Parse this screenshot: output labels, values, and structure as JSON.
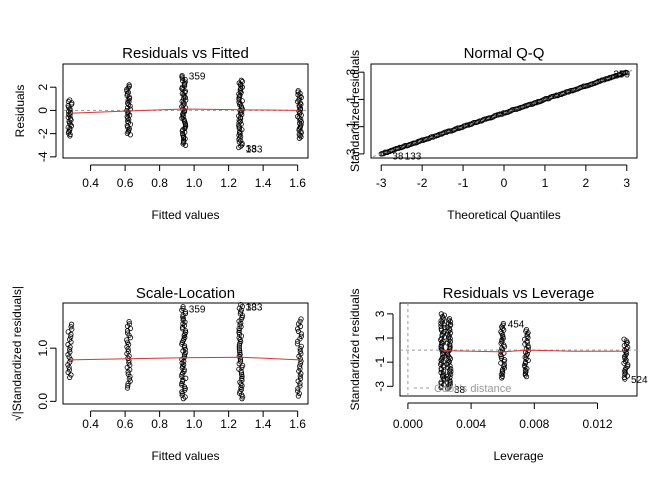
{
  "chart_data": [
    {
      "id": "rvf",
      "type": "scatter",
      "title": "Residuals vs Fitted",
      "xlabel": "Fitted values",
      "ylabel": "Residuals",
      "xlim": [
        0.24,
        1.66
      ],
      "ylim": [
        -4.1,
        4.0
      ],
      "xticks": [
        0.4,
        0.6,
        0.8,
        1.0,
        1.2,
        1.4,
        1.6
      ],
      "xtick_labels": [
        "0.4",
        "0.6",
        "0.8",
        "1.0",
        "1.2",
        "1.4",
        "1.6"
      ],
      "yticks": [
        -4,
        -2,
        0,
        2
      ],
      "ytick_labels": [
        "-4",
        "-2",
        "0",
        "2"
      ],
      "groups": [
        {
          "x": 0.28,
          "min": -2.2,
          "max": 0.9,
          "n": 26
        },
        {
          "x": 0.62,
          "min": -2.1,
          "max": 2.2,
          "n": 34
        },
        {
          "x": 0.94,
          "min": -3.0,
          "max": 3.0,
          "n": 55
        },
        {
          "x": 1.27,
          "min": -3.2,
          "max": 2.6,
          "n": 50
        },
        {
          "x": 1.61,
          "min": -2.4,
          "max": 1.7,
          "n": 36
        }
      ],
      "smooth": [
        [
          0.28,
          -0.25
        ],
        [
          0.62,
          -0.05
        ],
        [
          0.94,
          0.12
        ],
        [
          1.27,
          0.05
        ],
        [
          1.61,
          0.0
        ]
      ],
      "reference_y": 0,
      "annotations": [
        {
          "text": "359",
          "x": 0.94,
          "y": 3.0
        },
        {
          "text": "133",
          "x": 1.27,
          "y": -3.3
        },
        {
          "text": "38",
          "x": 1.27,
          "y": -3.25
        }
      ]
    },
    {
      "id": "qq",
      "type": "scatter",
      "title": "Normal Q-Q",
      "xlabel": "Theoretical Quantiles",
      "ylabel": "Standardized residuals",
      "xlim": [
        -3.25,
        3.25
      ],
      "ylim": [
        -3.3,
        3.6
      ],
      "xticks": [
        -3,
        -2,
        -1,
        0,
        1,
        2,
        3
      ],
      "xtick_labels": [
        "-3",
        "-2",
        "-1",
        "0",
        "1",
        "2",
        "3"
      ],
      "yticks": [
        -3,
        -1,
        1,
        3
      ],
      "ytick_labels": [
        "-3",
        "-1",
        "1",
        "3"
      ],
      "line": {
        "intercept": 0,
        "slope": 1
      },
      "n_points": 200,
      "annotations": [
        {
          "text": "359",
          "x": 2.55,
          "y": 2.9
        },
        {
          "text": "133",
          "x": -2.55,
          "y": -3.1
        },
        {
          "text": "38",
          "x": -2.85,
          "y": -3.1
        }
      ]
    },
    {
      "id": "sl",
      "type": "scatter",
      "title": "Scale-Location",
      "xlabel": "Fitted values",
      "ylabel": "√|Standardized residuals|",
      "xlim": [
        0.24,
        1.66
      ],
      "ylim": [
        -0.05,
        1.85
      ],
      "xticks": [
        0.4,
        0.6,
        0.8,
        1.0,
        1.2,
        1.4,
        1.6
      ],
      "xtick_labels": [
        "0.4",
        "0.6",
        "0.8",
        "1.0",
        "1.2",
        "1.4",
        "1.6"
      ],
      "yticks": [
        0.0,
        1.0
      ],
      "ytick_labels": [
        "0.0",
        "1.0"
      ],
      "groups": [
        {
          "x": 0.28,
          "min": 0.45,
          "max": 1.45,
          "n": 22
        },
        {
          "x": 0.62,
          "min": 0.25,
          "max": 1.5,
          "n": 30
        },
        {
          "x": 0.94,
          "min": 0.05,
          "max": 1.78,
          "n": 55
        },
        {
          "x": 1.27,
          "min": 0.05,
          "max": 1.82,
          "n": 52
        },
        {
          "x": 1.61,
          "min": 0.1,
          "max": 1.55,
          "n": 32
        }
      ],
      "smooth": [
        [
          0.28,
          0.78
        ],
        [
          0.62,
          0.8
        ],
        [
          0.94,
          0.82
        ],
        [
          1.27,
          0.83
        ],
        [
          1.61,
          0.78
        ]
      ],
      "annotations": [
        {
          "text": "359",
          "x": 0.94,
          "y": 1.75
        },
        {
          "text": "133",
          "x": 1.27,
          "y": 1.78
        },
        {
          "text": "38",
          "x": 1.27,
          "y": 1.78
        }
      ]
    },
    {
      "id": "rvl",
      "type": "scatter",
      "title": "Residuals vs Leverage",
      "xlabel": "Leverage",
      "ylabel": "Standardized residuals",
      "xlim": [
        -0.0005,
        0.0145
      ],
      "ylim": [
        -3.8,
        3.9
      ],
      "xticks": [
        0.0,
        0.004,
        0.008,
        0.012
      ],
      "xtick_labels": [
        "0.000",
        "0.004",
        "0.008",
        "0.012"
      ],
      "yticks": [
        -3,
        -1,
        1,
        3
      ],
      "ytick_labels": [
        "-3",
        "-1",
        "1",
        "3"
      ],
      "groups": [
        {
          "x": 0.0022,
          "min": -3.1,
          "max": 3.0,
          "n": 55
        },
        {
          "x": 0.0026,
          "min": -3.2,
          "max": 2.6,
          "n": 50
        },
        {
          "x": 0.006,
          "min": -2.3,
          "max": 2.2,
          "n": 34
        },
        {
          "x": 0.0075,
          "min": -2.2,
          "max": 1.7,
          "n": 30
        },
        {
          "x": 0.0138,
          "min": -2.4,
          "max": 0.9,
          "n": 26
        }
      ],
      "smooth": [
        [
          0.0022,
          0.0
        ],
        [
          0.0026,
          -0.05
        ],
        [
          0.006,
          -0.15
        ],
        [
          0.0075,
          0.0
        ],
        [
          0.0105,
          -0.1
        ],
        [
          0.0138,
          -0.1
        ]
      ],
      "reference_y": 0,
      "reference_x": 0,
      "annotations": [
        {
          "text": "454",
          "x": 0.006,
          "y": 2.2
        },
        {
          "text": "38",
          "x": 0.0026,
          "y": -3.2
        },
        {
          "text": "524",
          "x": 0.0138,
          "y": -2.4
        }
      ],
      "legend": "Cook's distance"
    }
  ]
}
